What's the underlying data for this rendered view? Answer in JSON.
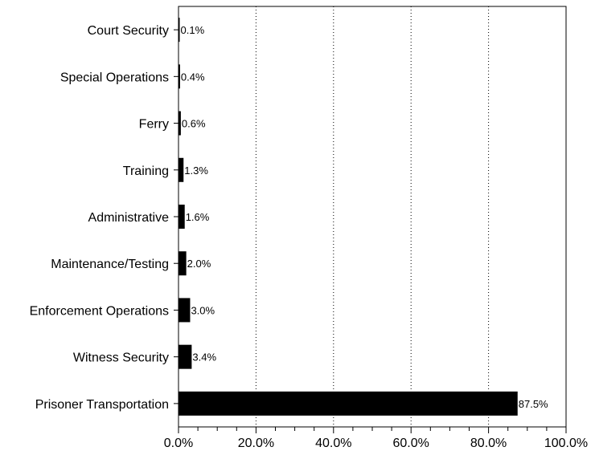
{
  "chart_data": {
    "type": "bar",
    "orientation": "horizontal",
    "categories": [
      "Court Security",
      "Special Operations",
      "Ferry",
      "Training",
      "Administrative",
      "Maintenance/Testing",
      "Enforcement Operations",
      "Witness Security",
      "Prisoner Transportation"
    ],
    "values": [
      0.1,
      0.4,
      0.6,
      1.3,
      1.6,
      2.0,
      3.0,
      3.4,
      87.5
    ],
    "data_labels": [
      "0.1%",
      "0.4%",
      "0.6%",
      "1.3%",
      "1.6%",
      "2.0%",
      "3.0%",
      "3.4%",
      "87.5%"
    ],
    "xlim": [
      0,
      100
    ],
    "xticks": [
      0,
      20,
      40,
      60,
      80,
      100
    ],
    "xtick_labels": [
      "0.0%",
      "20.0%",
      "40.0%",
      "60.0%",
      "80.0%",
      "100.0%"
    ],
    "grid": "vertical dotted lines at 20, 40, 60",
    "bar_color": "#000000",
    "title": "",
    "xlabel": "",
    "ylabel": ""
  }
}
